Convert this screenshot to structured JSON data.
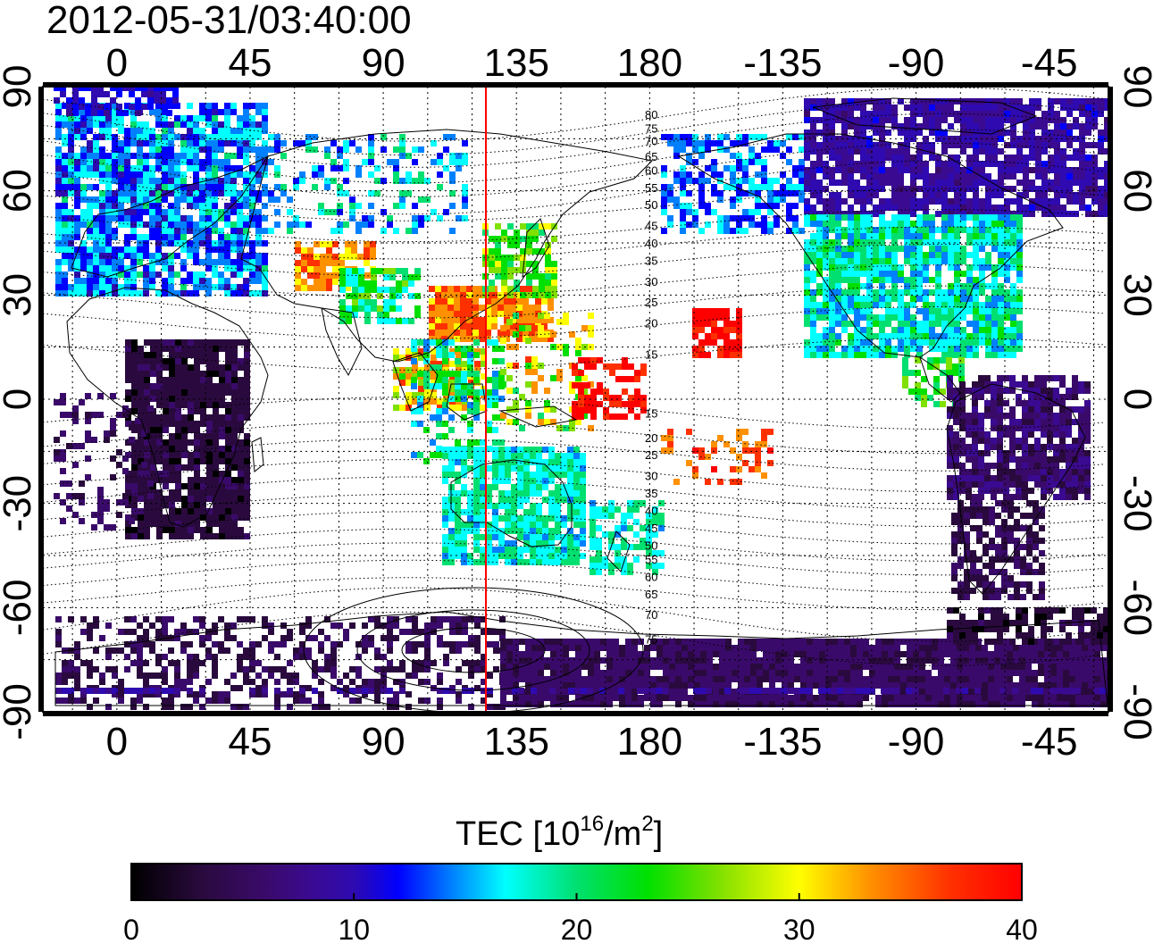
{
  "timestamp": "2012-05-31/03:40:00",
  "map": {
    "lon_ticks_top": [
      "0",
      "45",
      "90",
      "135",
      "180",
      "-135",
      "-90",
      "-45"
    ],
    "lon_ticks_bottom": [
      "0",
      "45",
      "90",
      "135",
      "180",
      "-135",
      "-90",
      "-45"
    ],
    "lat_ticks_left": [
      "90",
      "60",
      "30",
      "0",
      "-30",
      "-60",
      "-90"
    ],
    "lat_ticks_right": [
      "90",
      "60",
      "30",
      "0",
      "-30",
      "-60",
      "-90"
    ],
    "sun_meridian_color": "#ff0000",
    "magnetic_latitude_labels": [
      {
        "text": "80",
        "lat": 82
      },
      {
        "text": "75",
        "lat": 78
      },
      {
        "text": "70",
        "lat": 74.5
      },
      {
        "text": "65",
        "lat": 70
      },
      {
        "text": "60",
        "lat": 66
      },
      {
        "text": "55",
        "lat": 61
      },
      {
        "text": "50",
        "lat": 56
      },
      {
        "text": "45",
        "lat": 50
      },
      {
        "text": "40",
        "lat": 45
      },
      {
        "text": "35",
        "lat": 40
      },
      {
        "text": "30",
        "lat": 34
      },
      {
        "text": "25",
        "lat": 28
      },
      {
        "text": "20",
        "lat": 22
      },
      {
        "text": "15",
        "lat": 13
      },
      {
        "text": "15",
        "lat": -4
      },
      {
        "text": "20",
        "lat": -11
      },
      {
        "text": "25",
        "lat": -16
      },
      {
        "text": "30",
        "lat": -22
      },
      {
        "text": "35",
        "lat": -27
      },
      {
        "text": "40",
        "lat": -32
      },
      {
        "text": "45",
        "lat": -37
      },
      {
        "text": "50",
        "lat": -42
      },
      {
        "text": "55",
        "lat": -46
      },
      {
        "text": "60",
        "lat": -51
      },
      {
        "text": "65",
        "lat": -56
      },
      {
        "text": "70",
        "lat": -62
      },
      {
        "text": "75",
        "lat": -69
      }
    ]
  },
  "colorbar": {
    "title_main": "TEC  [10",
    "title_sup": "16",
    "title_mid": "/m",
    "title_sup2": "2",
    "title_end": "]",
    "min": 0,
    "max": 40,
    "ticks": [
      "0",
      "10",
      "20",
      "30",
      "40"
    ],
    "palette": [
      "#000000",
      "#2a0a3e",
      "#3a0a6a",
      "#3a0a90",
      "#2e0ab0",
      "#0000ff",
      "#0080ff",
      "#00ffff",
      "#00e070",
      "#00e000",
      "#80e000",
      "#ffff00",
      "#ff9000",
      "#ff3000",
      "#ff0000"
    ]
  }
}
